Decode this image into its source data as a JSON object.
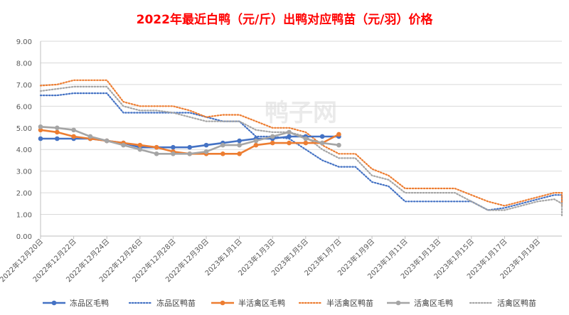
{
  "chart_data": {
    "type": "line",
    "title": "2022年最近白鸭（元/斤）出鸭对应鸭苗（元/羽）价格",
    "xlabel": "",
    "ylabel": "",
    "ylim": [
      0,
      9
    ],
    "yticks": [
      "0.00",
      "1.00",
      "2.00",
      "3.00",
      "4.00",
      "5.00",
      "6.00",
      "7.00",
      "8.00",
      "9.00"
    ],
    "grid": true,
    "legend_position": "bottom",
    "x_start": "2022-12-20",
    "x_end": "2023-01-20",
    "xtick_labels": [
      "2022年12月20日",
      "2022年12月22日",
      "2022年12月24日",
      "2022年12月26日",
      "2022年12月28日",
      "2022年12月30日",
      "2023年1月1日",
      "2023年1月3日",
      "2023年1月5日",
      "2023年1月7日",
      "2023年1月9日",
      "2023年1月11日",
      "2023年1月13日",
      "2023年1月15日",
      "2023年1月17日",
      "2023年1月19日"
    ],
    "watermark": "鸭子网",
    "series": [
      {
        "name": "冻品区毛鸭",
        "style": "solid-marker",
        "color": "#4472c4",
        "points": [
          [
            "2022-12-20",
            4.5
          ],
          [
            "2022-12-21",
            4.5
          ],
          [
            "2022-12-22",
            4.5
          ],
          [
            "2022-12-23",
            4.5
          ],
          [
            "2022-12-24",
            4.4
          ],
          [
            "2022-12-25",
            4.3
          ],
          [
            "2022-12-26",
            4.1
          ],
          [
            "2022-12-27",
            4.1
          ],
          [
            "2022-12-28",
            4.1
          ],
          [
            "2022-12-29",
            4.1
          ],
          [
            "2022-12-30",
            4.2
          ],
          [
            "2022-12-31",
            4.3
          ],
          [
            "2023-01-01",
            4.4
          ],
          [
            "2023-01-02",
            4.5
          ],
          [
            "2023-01-03",
            4.5
          ],
          [
            "2023-01-04",
            4.6
          ],
          [
            "2023-01-05",
            4.6
          ],
          [
            "2023-01-06",
            4.6
          ],
          [
            "2023-01-07",
            4.6
          ]
        ]
      },
      {
        "name": "冻品区鸭苗",
        "style": "dotted",
        "color": "#4472c4",
        "points": [
          [
            "2022-12-20",
            6.5
          ],
          [
            "2022-12-21",
            6.5
          ],
          [
            "2022-12-22",
            6.6
          ],
          [
            "2022-12-23",
            6.6
          ],
          [
            "2022-12-24",
            6.6
          ],
          [
            "2022-12-25",
            5.7
          ],
          [
            "2022-12-26",
            5.7
          ],
          [
            "2022-12-27",
            5.7
          ],
          [
            "2022-12-28",
            5.7
          ],
          [
            "2022-12-29",
            5.7
          ],
          [
            "2022-12-30",
            5.5
          ],
          [
            "2022-12-31",
            5.3
          ],
          [
            "2023-01-01",
            5.3
          ],
          [
            "2023-01-02",
            4.6
          ],
          [
            "2023-01-03",
            4.6
          ],
          [
            "2023-01-04",
            4.5
          ],
          [
            "2023-01-05",
            4.0
          ],
          [
            "2023-01-06",
            3.5
          ],
          [
            "2023-01-07",
            3.2
          ],
          [
            "2023-01-08",
            3.2
          ],
          [
            "2023-01-09",
            2.5
          ],
          [
            "2023-01-10",
            2.3
          ],
          [
            "2023-01-11",
            1.6
          ],
          [
            "2023-01-12",
            1.6
          ],
          [
            "2023-01-13",
            1.6
          ],
          [
            "2023-01-14",
            1.6
          ],
          [
            "2023-01-15",
            1.6
          ],
          [
            "2023-01-16",
            1.2
          ],
          [
            "2023-01-17",
            1.3
          ],
          [
            "2023-01-18",
            1.5
          ],
          [
            "2023-01-19",
            1.7
          ],
          [
            "2023-01-20",
            1.9
          ],
          [
            "2023-01-21",
            1.9
          ],
          [
            "2023-01-22",
            1.4
          ]
        ]
      },
      {
        "name": "半活禽区毛鸭",
        "style": "solid-marker",
        "color": "#ed7d31",
        "points": [
          [
            "2022-12-20",
            4.9
          ],
          [
            "2022-12-21",
            4.8
          ],
          [
            "2022-12-22",
            4.6
          ],
          [
            "2022-12-23",
            4.5
          ],
          [
            "2022-12-24",
            4.4
          ],
          [
            "2022-12-25",
            4.3
          ],
          [
            "2022-12-26",
            4.2
          ],
          [
            "2022-12-27",
            4.1
          ],
          [
            "2022-12-28",
            3.9
          ],
          [
            "2022-12-29",
            3.8
          ],
          [
            "2022-12-30",
            3.8
          ],
          [
            "2022-12-31",
            3.8
          ],
          [
            "2023-01-01",
            3.8
          ],
          [
            "2023-01-02",
            4.2
          ],
          [
            "2023-01-03",
            4.3
          ],
          [
            "2023-01-04",
            4.3
          ],
          [
            "2023-01-05",
            4.3
          ],
          [
            "2023-01-06",
            4.3
          ],
          [
            "2023-01-07",
            4.7
          ]
        ]
      },
      {
        "name": "半活禽区鸭苗",
        "style": "dotted",
        "color": "#ed7d31",
        "points": [
          [
            "2022-12-20",
            6.95
          ],
          [
            "2022-12-21",
            7.0
          ],
          [
            "2022-12-22",
            7.2
          ],
          [
            "2022-12-23",
            7.2
          ],
          [
            "2022-12-24",
            7.2
          ],
          [
            "2022-12-25",
            6.2
          ],
          [
            "2022-12-26",
            6.0
          ],
          [
            "2022-12-27",
            6.0
          ],
          [
            "2022-12-28",
            6.0
          ],
          [
            "2022-12-29",
            5.8
          ],
          [
            "2022-12-30",
            5.5
          ],
          [
            "2022-12-31",
            5.6
          ],
          [
            "2023-01-01",
            5.6
          ],
          [
            "2023-01-02",
            5.3
          ],
          [
            "2023-01-03",
            5.0
          ],
          [
            "2023-01-04",
            5.0
          ],
          [
            "2023-01-05",
            4.8
          ],
          [
            "2023-01-06",
            4.2
          ],
          [
            "2023-01-07",
            3.8
          ],
          [
            "2023-01-08",
            3.8
          ],
          [
            "2023-01-09",
            3.1
          ],
          [
            "2023-01-10",
            2.8
          ],
          [
            "2023-01-11",
            2.2
          ],
          [
            "2023-01-12",
            2.2
          ],
          [
            "2023-01-13",
            2.2
          ],
          [
            "2023-01-14",
            2.2
          ],
          [
            "2023-01-15",
            1.9
          ],
          [
            "2023-01-16",
            1.6
          ],
          [
            "2023-01-17",
            1.4
          ],
          [
            "2023-01-18",
            1.6
          ],
          [
            "2023-01-19",
            1.8
          ],
          [
            "2023-01-20",
            2.0
          ],
          [
            "2023-01-21",
            2.0
          ],
          [
            "2023-01-22",
            1.4
          ]
        ]
      },
      {
        "name": "活禽区毛鸭",
        "style": "solid-marker",
        "color": "#a5a5a5",
        "points": [
          [
            "2022-12-20",
            5.05
          ],
          [
            "2022-12-21",
            5.0
          ],
          [
            "2022-12-22",
            4.9
          ],
          [
            "2022-12-23",
            4.6
          ],
          [
            "2022-12-24",
            4.4
          ],
          [
            "2022-12-25",
            4.2
          ],
          [
            "2022-12-26",
            4.0
          ],
          [
            "2022-12-27",
            3.8
          ],
          [
            "2022-12-28",
            3.8
          ],
          [
            "2022-12-29",
            3.8
          ],
          [
            "2022-12-30",
            3.9
          ],
          [
            "2022-12-31",
            4.2
          ],
          [
            "2023-01-01",
            4.2
          ],
          [
            "2023-01-02",
            4.4
          ],
          [
            "2023-01-03",
            4.6
          ],
          [
            "2023-01-04",
            4.8
          ],
          [
            "2023-01-05",
            4.5
          ],
          [
            "2023-01-06",
            4.3
          ],
          [
            "2023-01-07",
            4.2
          ]
        ]
      },
      {
        "name": "活禽区鸭苗",
        "style": "dotted",
        "color": "#a5a5a5",
        "points": [
          [
            "2022-12-20",
            6.7
          ],
          [
            "2022-12-21",
            6.8
          ],
          [
            "2022-12-22",
            6.9
          ],
          [
            "2022-12-23",
            6.9
          ],
          [
            "2022-12-24",
            6.9
          ],
          [
            "2022-12-25",
            6.0
          ],
          [
            "2022-12-26",
            5.8
          ],
          [
            "2022-12-27",
            5.8
          ],
          [
            "2022-12-28",
            5.7
          ],
          [
            "2022-12-29",
            5.5
          ],
          [
            "2022-12-30",
            5.3
          ],
          [
            "2022-12-31",
            5.3
          ],
          [
            "2023-01-01",
            5.3
          ],
          [
            "2023-01-02",
            4.9
          ],
          [
            "2023-01-03",
            4.8
          ],
          [
            "2023-01-04",
            4.8
          ],
          [
            "2023-01-05",
            4.6
          ],
          [
            "2023-01-06",
            4.0
          ],
          [
            "2023-01-07",
            3.6
          ],
          [
            "2023-01-08",
            3.6
          ],
          [
            "2023-01-09",
            2.8
          ],
          [
            "2023-01-10",
            2.6
          ],
          [
            "2023-01-11",
            2.0
          ],
          [
            "2023-01-12",
            2.0
          ],
          [
            "2023-01-13",
            2.0
          ],
          [
            "2023-01-14",
            2.0
          ],
          [
            "2023-01-15",
            1.6
          ],
          [
            "2023-01-16",
            1.2
          ],
          [
            "2023-01-17",
            1.2
          ],
          [
            "2023-01-18",
            1.4
          ],
          [
            "2023-01-19",
            1.6
          ],
          [
            "2023-01-20",
            1.7
          ],
          [
            "2023-01-21",
            1.5
          ],
          [
            "2023-01-22",
            0.9
          ]
        ]
      }
    ]
  }
}
